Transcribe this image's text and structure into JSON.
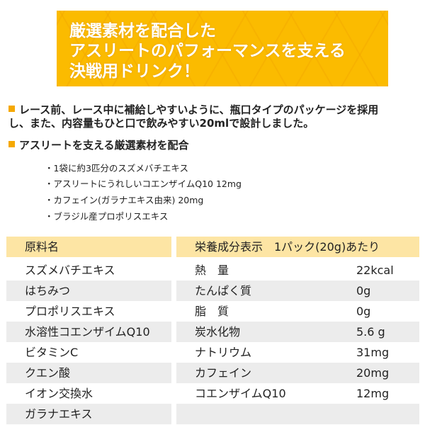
{
  "banner": {
    "lines": [
      "厳選素材を配合した",
      "アスリートのパフォーマンスを支える",
      "決戦用ドリンク！"
    ],
    "color": "#fbbb00"
  },
  "headline1": [
    "レース前、レース中に補給しやすいように、瓶口タイプのパッケージを採用",
    "し、また、内容量もひと口で飲みやすい20mlで設計しました。"
  ],
  "headline2": "アスリートを支える厳選素材を配合",
  "features": [
    "・1袋に約3匹分のスズメバチエキス",
    "・アスリートにうれしいコエンザイムQ10 12mg",
    "・カフェイン(ガラナエキス由来) 20mg",
    "・ブラジル産プロポリスエキス"
  ],
  "ingredients": {
    "header": "原料名",
    "items": [
      "スズメバチエキス",
      "はちみつ",
      "プロポリスエキス",
      "水溶性コエンザイムQ10",
      "ビタミンC",
      "クエン酸",
      "イオン交換水",
      "ガラナエキス"
    ]
  },
  "nutrition": {
    "header": "栄養成分表示　1パック(20g)あたり",
    "rows": [
      [
        "熱　量",
        "22kcal"
      ],
      [
        "たんぱく質",
        "0g"
      ],
      [
        "脂　質",
        "0g"
      ],
      [
        "炭水化物",
        "5.6 g"
      ],
      [
        "ナトリウム",
        "31mg"
      ],
      [
        "カフェイン",
        "20mg"
      ],
      [
        "コエンザイムQ10",
        "12mg"
      ]
    ]
  },
  "colors": {
    "accent": "#f5a800",
    "header_bg": "#fde5a4",
    "row_alt": "#ececec"
  }
}
